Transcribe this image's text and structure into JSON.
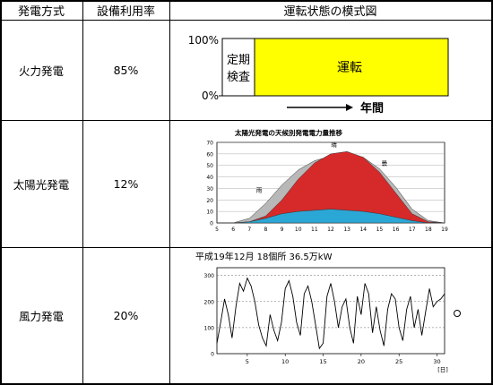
{
  "headers": {
    "method": "発電方式",
    "utilization": "設備利用率",
    "schematic": "運転状態の模式図"
  },
  "rows": [
    {
      "method": "火力発電",
      "utilization": "85%",
      "diagram": {
        "y_top": "100%",
        "y_bottom": "0%",
        "inspection_line1": "定期",
        "inspection_line2": "検査",
        "operation": "運転",
        "x_label": "年間",
        "operation_color": "#ffff00"
      }
    },
    {
      "method": "太陽光発電",
      "utilization": "12%",
      "chart_title": "太陽光発電の天候別発電電力量推移",
      "chart_data": {
        "type": "area",
        "title": "太陽光発電の天候別発電電力量推移",
        "x": [
          5,
          6,
          7,
          8,
          9,
          10,
          11,
          12,
          13,
          14,
          15,
          16,
          17,
          18,
          19
        ],
        "xlim": [
          5,
          19
        ],
        "ylim": [
          0,
          70
        ],
        "yticks": [
          0,
          10,
          20,
          30,
          40,
          50,
          60,
          70
        ],
        "series": [
          {
            "name": "晴",
            "color": "#d62a2a",
            "values": [
              0,
              0,
              1,
              6,
              20,
              38,
              52,
              60,
              62,
              57,
              44,
              26,
              8,
              1,
              0
            ]
          },
          {
            "name": "曇",
            "color": "#b8b8b8",
            "values": [
              0,
              0,
              4,
              17,
              33,
              46,
              54,
              58,
              60,
              57,
              47,
              31,
              12,
              2,
              0
            ]
          },
          {
            "name": "雨",
            "color": "#2ba7d6",
            "values": [
              0,
              0,
              1,
              4,
              8,
              10,
              11,
              12,
              11,
              10,
              8,
              5,
              2,
              0,
              0
            ]
          }
        ]
      }
    },
    {
      "method": "風力発電",
      "utilization": "20%",
      "caption": "平成19年12月 18個所 36.5万kW",
      "chart_data": {
        "type": "line",
        "title": "",
        "x_unit": "[日]",
        "xticks": [
          5,
          10,
          15,
          20,
          25,
          30
        ],
        "yticks": [
          0,
          100,
          200,
          300
        ],
        "xlim": [
          1,
          31
        ],
        "ylim": [
          0,
          330
        ],
        "x": [
          1,
          1.5,
          2,
          2.5,
          3,
          3.5,
          4,
          4.5,
          5,
          5.5,
          6,
          6.5,
          7,
          7.5,
          8,
          8.5,
          9,
          9.5,
          10,
          10.5,
          11,
          11.5,
          12,
          12.5,
          13,
          13.5,
          14,
          14.5,
          15,
          15.5,
          16,
          16.5,
          17,
          17.5,
          18,
          18.5,
          19,
          19.5,
          20,
          20.5,
          21,
          21.5,
          22,
          22.5,
          23,
          23.5,
          24,
          24.5,
          25,
          25.5,
          26,
          26.5,
          27,
          27.5,
          28,
          28.5,
          29,
          29.5,
          30,
          30.5,
          31
        ],
        "values": [
          40,
          120,
          210,
          150,
          60,
          180,
          270,
          240,
          290,
          260,
          200,
          110,
          60,
          30,
          150,
          90,
          50,
          120,
          250,
          280,
          220,
          120,
          70,
          230,
          260,
          200,
          110,
          20,
          40,
          220,
          270,
          200,
          100,
          180,
          210,
          100,
          40,
          220,
          150,
          270,
          230,
          80,
          180,
          90,
          30,
          170,
          230,
          210,
          100,
          50,
          170,
          220,
          100,
          170,
          70,
          160,
          250,
          180,
          200,
          210,
          230
        ],
        "line_color": "#000000"
      }
    }
  ]
}
